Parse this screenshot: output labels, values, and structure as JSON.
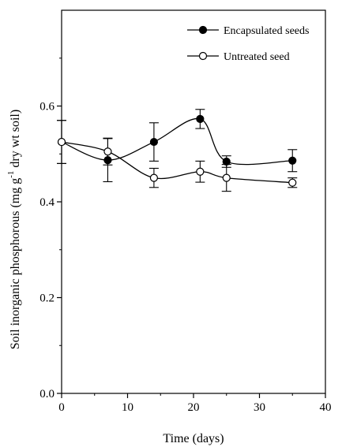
{
  "chart_data": {
    "type": "line",
    "xlabel": "Time (days)",
    "ylabel": {
      "before": "Soil inorganic phosphorous (mg g",
      "superscript": "-1",
      "after": " dry wt soil)"
    },
    "xlim": [
      0,
      40
    ],
    "ylim": [
      0,
      0.8
    ],
    "x_ticks": [
      "0",
      "10",
      "20",
      "30",
      "40"
    ],
    "y_ticks": [
      "0.0",
      "0.2",
      "0.4",
      "0.6"
    ],
    "grid": false,
    "legend_position": "top-right",
    "series": [
      {
        "name": "Encapsulated seeds",
        "marker": "filled-circle",
        "color": "#000000",
        "x": [
          0,
          7,
          14,
          21,
          25,
          35
        ],
        "y": [
          0.525,
          0.487,
          0.525,
          0.573,
          0.484,
          0.486
        ],
        "err": [
          0.045,
          0.045,
          0.04,
          0.02,
          0.012,
          0.023
        ]
      },
      {
        "name": "Untreated seed",
        "marker": "open-circle",
        "color": "#000000",
        "x": [
          0,
          7,
          14,
          21,
          25,
          35
        ],
        "y": [
          0.525,
          0.505,
          0.45,
          0.463,
          0.45,
          0.44
        ],
        "err": [
          0.045,
          0.028,
          0.02,
          0.022,
          0.028,
          0.01
        ]
      }
    ]
  }
}
